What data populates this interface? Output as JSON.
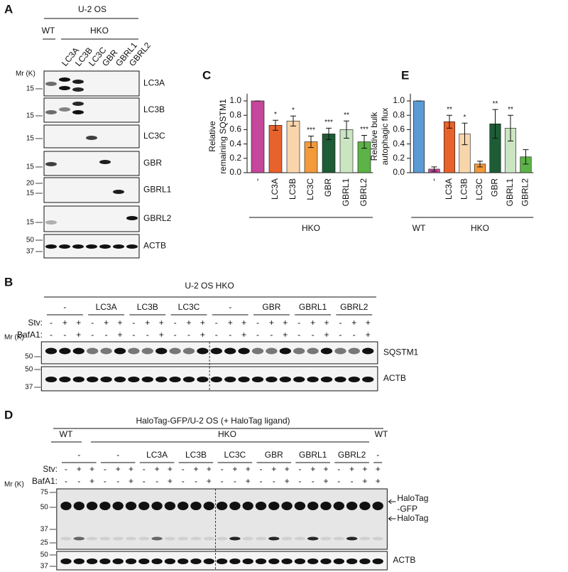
{
  "panels": {
    "a": {
      "letter": "A",
      "cell_line": "U-2 OS",
      "wt": "WT",
      "hko": "HKO",
      "lanes": [
        "LC3A",
        "LC3B",
        "LC3C",
        "GBR",
        "GBRL1",
        "GBRL2"
      ],
      "mr": "Mr (K)",
      "blots": [
        {
          "label": "LC3A",
          "markers": [
            15
          ]
        },
        {
          "label": "LC3B",
          "markers": [
            15
          ]
        },
        {
          "label": "LC3C",
          "markers": [
            15
          ]
        },
        {
          "label": "GBR",
          "markers": [
            15
          ]
        },
        {
          "label": "GBRL1",
          "markers": [
            20,
            15
          ]
        },
        {
          "label": "GBRL2",
          "markers": [
            15
          ]
        },
        {
          "label": "ACTB",
          "markers": [
            50,
            37
          ]
        }
      ]
    },
    "b": {
      "letter": "B",
      "title": "U-2 OS HKO",
      "groups": [
        "-",
        "LC3A",
        "LC3B",
        "LC3C",
        "-",
        "GBR",
        "GBRL1",
        "GBRL2"
      ],
      "stv_label": "Stv:",
      "baf_label": "BafA1:",
      "stv": [
        "-",
        "+",
        "+",
        "-",
        "+",
        "+",
        "-",
        "+",
        "+",
        "-",
        "+",
        "+",
        "-",
        "+",
        "+",
        "-",
        "+",
        "+",
        "-",
        "+",
        "+",
        "-",
        "+",
        "+"
      ],
      "baf": [
        "-",
        "-",
        "+",
        "-",
        "-",
        "+",
        "-",
        "-",
        "+",
        "-",
        "-",
        "+",
        "-",
        "-",
        "+",
        "-",
        "-",
        "+",
        "-",
        "-",
        "+",
        "-",
        "-",
        "+"
      ],
      "mr": "Mr (K)",
      "blots": [
        {
          "label": "SQSTM1",
          "markers": [
            50
          ]
        },
        {
          "label": "ACTB",
          "markers": [
            50,
            37
          ]
        }
      ]
    },
    "d": {
      "letter": "D",
      "title": "HaloTag-GFP/U-2 OS (+ HaloTag ligand)",
      "wt": "WT",
      "hko": "HKO",
      "wt2": "WT",
      "groups": [
        "-",
        "-",
        "LC3A",
        "LC3B",
        "LC3C",
        "GBR",
        "GBRL1",
        "GBRL2",
        "-"
      ],
      "stv_label": "Stv:",
      "baf_label": "BafA1:",
      "stv": [
        "-",
        "+",
        "+",
        "-",
        "+",
        "+",
        "-",
        "+",
        "+",
        "-",
        "+",
        "+",
        "-",
        "+",
        "+",
        "-",
        "+",
        "+",
        "-",
        "+",
        "+",
        "-",
        "+",
        "+",
        "+"
      ],
      "baf": [
        "-",
        "-",
        "+",
        "-",
        "-",
        "+",
        "-",
        "-",
        "+",
        "-",
        "-",
        "+",
        "-",
        "-",
        "+",
        "-",
        "-",
        "+",
        "-",
        "-",
        "+",
        "-",
        "-",
        "+",
        "+"
      ],
      "mr": "Mr (K)",
      "blots": [
        {
          "label_lines": [
            "HaloTag",
            "-GFP"
          ],
          "label2": "HaloTag",
          "markers": [
            75,
            50,
            37,
            25
          ]
        },
        {
          "label": "ACTB",
          "markers": [
            50,
            37
          ]
        }
      ]
    }
  },
  "chart_data": [
    {
      "type": "bar",
      "letter": "C",
      "ylabel_lines": [
        "Relative",
        "remaining SQSTM1"
      ],
      "categories": [
        "-",
        "LC3A",
        "LC3B",
        "LC3C",
        "GBR",
        "GBRL1",
        "GBRL2"
      ],
      "values": [
        1.0,
        0.66,
        0.72,
        0.43,
        0.54,
        0.6,
        0.43
      ],
      "errors": [
        0,
        0.07,
        0.07,
        0.08,
        0.08,
        0.12,
        0.09
      ],
      "value_labels": [
        "",
        "*",
        "*",
        "***",
        "***",
        "**",
        "***"
      ],
      "colors": [
        "#c4479c",
        "#e8622c",
        "#f8d5ab",
        "#f39a3a",
        "#1e5c36",
        "#cbe5c2",
        "#5cb347"
      ],
      "ylim": [
        0,
        1.1
      ],
      "yticks": [
        {
          "value": 0,
          "label": "0.0"
        },
        {
          "value": 0.2,
          "label": "0.2"
        },
        {
          "value": 0.4,
          "label": "0.4"
        },
        {
          "value": 0.6,
          "label": "0.6"
        },
        {
          "value": 0.8,
          "label": "0.8"
        },
        {
          "value": 1,
          "label": "1.0"
        }
      ],
      "group_labels": [
        "HKO"
      ]
    },
    {
      "type": "bar",
      "letter": "E",
      "ylabel_lines": [
        "Relative bulk",
        "autophagic flux"
      ],
      "categories": [
        null,
        "-",
        "LC3A",
        "LC3B",
        "LC3C",
        "GBR",
        "GBRL1",
        "GBRL2"
      ],
      "values": [
        1.0,
        0.05,
        0.71,
        0.54,
        0.12,
        0.68,
        0.62,
        0.22
      ],
      "errors": [
        0,
        0.03,
        0.09,
        0.15,
        0.04,
        0.2,
        0.18,
        0.1
      ],
      "value_labels": [
        "",
        "",
        "**",
        "*",
        "",
        "**",
        "**",
        ""
      ],
      "colors": [
        "#5b9bd5",
        "#c4479c",
        "#e8622c",
        "#f8d5ab",
        "#f39a3a",
        "#1e5c36",
        "#cbe5c2",
        "#5cb347"
      ],
      "ylim": [
        0,
        1.1
      ],
      "yticks": [
        {
          "value": 0,
          "label": "0.0"
        },
        {
          "value": 0.2,
          "label": "0.2"
        },
        {
          "value": 0.4,
          "label": "0.4"
        },
        {
          "value": 0.6,
          "label": "0.6"
        },
        {
          "value": 0.8,
          "label": "0.8"
        },
        {
          "value": 1,
          "label": "1.0"
        }
      ],
      "group_labels": [
        "WT",
        "HKO"
      ]
    }
  ]
}
